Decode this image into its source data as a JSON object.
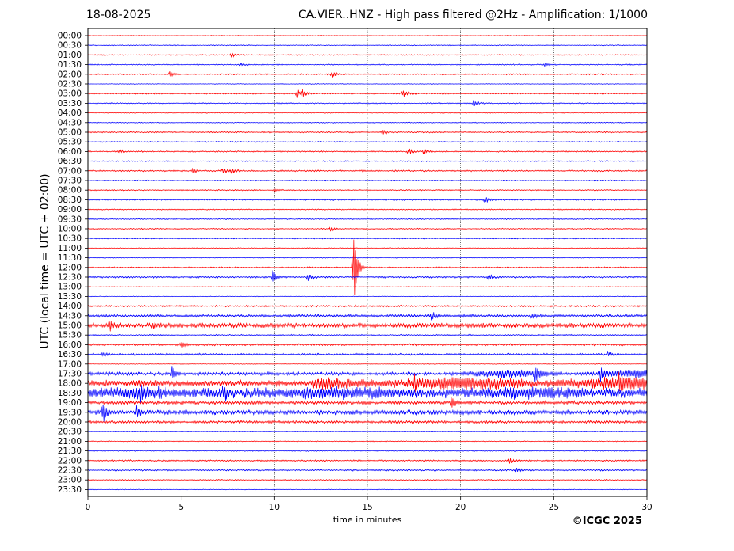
{
  "header": {
    "date": "18-08-2025",
    "title": "CA.VIER..HNZ - High pass filtered @2Hz - Amplification: 1/1000"
  },
  "footer": {
    "copyright": "©ICGC 2025"
  },
  "chart_data": {
    "type": "line",
    "title": "CA.VIER..HNZ - High pass filtered @2Hz - Amplification: 1/1000",
    "xlabel": "time in minutes",
    "ylabel": "UTC (local time = UTC + 02:00)",
    "xlim": [
      0,
      30
    ],
    "x_ticks": [
      0,
      5,
      10,
      15,
      20,
      25,
      30
    ],
    "vertical_grid": [
      5,
      10,
      15,
      20,
      25
    ],
    "grid": "vertical dotted",
    "colors": {
      "even": "#ff0000",
      "odd": "#0000ff"
    },
    "rows": [
      "00:00",
      "00:30",
      "01:00",
      "01:30",
      "02:00",
      "02:30",
      "03:00",
      "03:30",
      "04:00",
      "04:30",
      "05:00",
      "05:30",
      "06:00",
      "06:30",
      "07:00",
      "07:30",
      "08:00",
      "08:30",
      "09:00",
      "09:30",
      "10:00",
      "10:30",
      "11:00",
      "11:30",
      "12:00",
      "12:30",
      "13:00",
      "13:30",
      "14:00",
      "14:30",
      "15:00",
      "15:30",
      "16:00",
      "16:30",
      "17:00",
      "17:30",
      "18:00",
      "18:30",
      "19:00",
      "19:30",
      "20:00",
      "20:30",
      "21:00",
      "21:30",
      "22:00",
      "22:30",
      "23:00",
      "23:30"
    ],
    "noise_level": [
      0.3,
      0.4,
      0.5,
      0.5,
      0.6,
      0.3,
      0.6,
      0.5,
      0.4,
      0.4,
      0.6,
      0.5,
      0.6,
      0.5,
      0.7,
      0.5,
      0.5,
      0.6,
      0.5,
      0.5,
      0.5,
      0.5,
      0.4,
      0.4,
      0.6,
      0.8,
      0.3,
      0.3,
      0.8,
      1.2,
      2.2,
      0.6,
      0.9,
      0.9,
      0.3,
      1.5,
      3.0,
      4.5,
      1.5,
      2.2,
      1.2,
      0.3,
      0.4,
      0.5,
      0.7,
      0.7,
      0.5,
      0.3
    ],
    "events": [
      {
        "row": "01:00",
        "t": 7.7,
        "amp": 3
      },
      {
        "row": "01:30",
        "t": 8.2,
        "amp": 2
      },
      {
        "row": "01:30",
        "t": 24.5,
        "amp": 2
      },
      {
        "row": "02:00",
        "t": 4.4,
        "amp": 3
      },
      {
        "row": "02:00",
        "t": 13.1,
        "amp": 4
      },
      {
        "row": "03:00",
        "t": 11.2,
        "amp": 5
      },
      {
        "row": "03:00",
        "t": 11.5,
        "amp": 5
      },
      {
        "row": "03:00",
        "t": 16.9,
        "amp": 5
      },
      {
        "row": "03:30",
        "t": 20.7,
        "amp": 4
      },
      {
        "row": "05:00",
        "t": 15.8,
        "amp": 3
      },
      {
        "row": "06:00",
        "t": 1.7,
        "amp": 2
      },
      {
        "row": "06:00",
        "t": 17.2,
        "amp": 4
      },
      {
        "row": "06:00",
        "t": 18.0,
        "amp": 4
      },
      {
        "row": "07:00",
        "t": 5.6,
        "amp": 3
      },
      {
        "row": "07:00",
        "t": 7.2,
        "amp": 4
      },
      {
        "row": "07:00",
        "t": 7.7,
        "amp": 3
      },
      {
        "row": "08:00",
        "t": 10.0,
        "amp": 2
      },
      {
        "row": "08:30",
        "t": 21.3,
        "amp": 5
      },
      {
        "row": "10:00",
        "t": 13.0,
        "amp": 3
      },
      {
        "row": "12:00",
        "t": 14.25,
        "amp": 44
      },
      {
        "row": "12:30",
        "t": 9.9,
        "amp": 8
      },
      {
        "row": "12:30",
        "t": 11.8,
        "amp": 5
      },
      {
        "row": "12:30",
        "t": 21.5,
        "amp": 4
      },
      {
        "row": "14:30",
        "t": 18.4,
        "amp": 6
      },
      {
        "row": "14:30",
        "t": 23.8,
        "amp": 4
      },
      {
        "row": "15:00",
        "t": 1.2,
        "amp": 5
      },
      {
        "row": "15:00",
        "t": 3.5,
        "amp": 4
      },
      {
        "row": "16:00",
        "t": 5.0,
        "amp": 4
      },
      {
        "row": "16:30",
        "t": 0.8,
        "amp": 3
      },
      {
        "row": "16:30",
        "t": 27.9,
        "amp": 3
      },
      {
        "row": "17:30",
        "t": 4.5,
        "amp": 8
      },
      {
        "row": "17:30",
        "t": 24.0,
        "amp": 7
      },
      {
        "row": "17:30",
        "t": 27.5,
        "amp": 8
      },
      {
        "row": "18:00",
        "t": 17.5,
        "amp": 9
      },
      {
        "row": "18:00",
        "t": 28.5,
        "amp": 9
      },
      {
        "row": "18:30",
        "t": 2.8,
        "amp": 9
      },
      {
        "row": "18:30",
        "t": 7.3,
        "amp": 9
      },
      {
        "row": "19:00",
        "t": 19.5,
        "amp": 6
      },
      {
        "row": "19:30",
        "t": 0.8,
        "amp": 12
      },
      {
        "row": "19:30",
        "t": 2.6,
        "amp": 6
      },
      {
        "row": "22:00",
        "t": 22.6,
        "amp": 4
      },
      {
        "row": "22:30",
        "t": 23.0,
        "amp": 3
      }
    ]
  }
}
